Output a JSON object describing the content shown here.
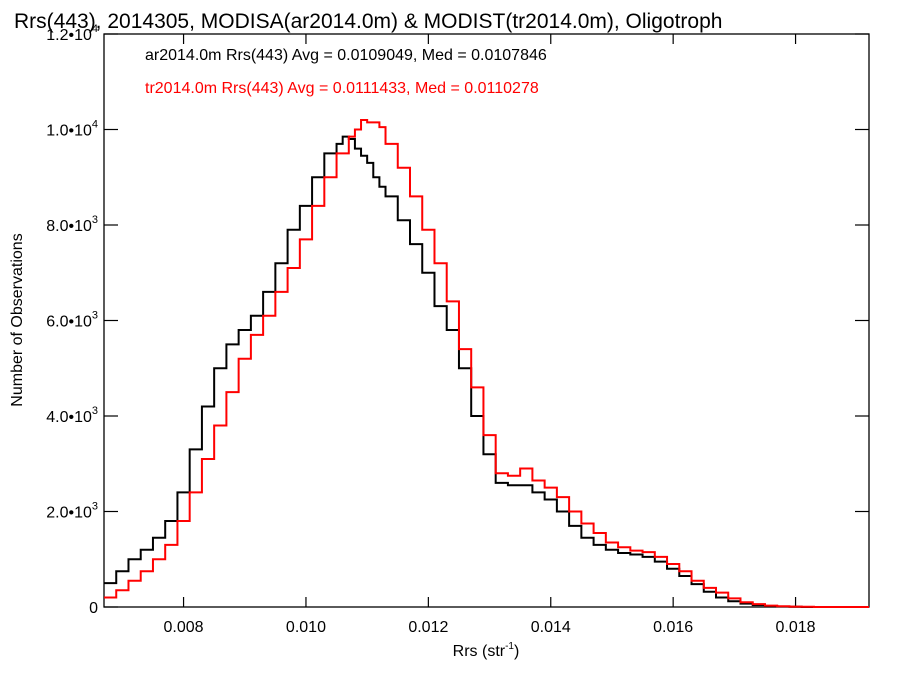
{
  "chart_data": {
    "type": "line",
    "title": "Rrs(443), 2014305, MODISA(ar2014.0m) & MODIST(tr2014.0m), Oligotroph",
    "xlabel": "Rrs (str",
    "xlabel_sup": "-1",
    "xlabel_close": ")",
    "ylabel": "Number of Observations",
    "xlim": [
      0.0067,
      0.0192
    ],
    "ylim": [
      0,
      12000
    ],
    "x_ticks": [
      {
        "value": 0.008,
        "label": "0.008"
      },
      {
        "value": 0.01,
        "label": "0.010"
      },
      {
        "value": 0.012,
        "label": "0.012"
      },
      {
        "value": 0.014,
        "label": "0.014"
      },
      {
        "value": 0.016,
        "label": "0.016"
      },
      {
        "value": 0.018,
        "label": "0.018"
      }
    ],
    "y_ticks": [
      {
        "value": 0,
        "mant": "0",
        "exp": ""
      },
      {
        "value": 2000,
        "mant": "2.0•1",
        "exp": "3"
      },
      {
        "value": 4000,
        "mant": "4.0•1",
        "exp": "3"
      },
      {
        "value": 6000,
        "mant": "6.0•1",
        "exp": "3"
      },
      {
        "value": 8000,
        "mant": "8.0•1",
        "exp": "3"
      },
      {
        "value": 10000,
        "mant": "1.0•1",
        "exp": "4"
      },
      {
        "value": 12000,
        "mant": "1.2•1",
        "exp": "4"
      }
    ],
    "legend": [
      {
        "text": "ar2014.0m Rrs(443) Avg = 0.0109049, Med = 0.0107846",
        "color": "#000000"
      },
      {
        "text": "tr2014.0m Rrs(443) Avg = 0.0111433, Med = 0.0110278",
        "color": "#ff0000"
      }
    ],
    "series": [
      {
        "color": "#000000",
        "x": [
          0.0067,
          0.0069,
          0.0071,
          0.0073,
          0.0075,
          0.0077,
          0.0079,
          0.0081,
          0.0083,
          0.0085,
          0.0087,
          0.0089,
          0.0091,
          0.0093,
          0.0095,
          0.0097,
          0.0099,
          0.0101,
          0.0103,
          0.0105,
          0.0106,
          0.0107,
          0.0108,
          0.0109,
          0.011,
          0.0111,
          0.0112,
          0.0113,
          0.0115,
          0.0117,
          0.0119,
          0.0121,
          0.0123,
          0.0125,
          0.0127,
          0.0129,
          0.0131,
          0.0133,
          0.0135,
          0.0137,
          0.0139,
          0.0141,
          0.0143,
          0.0145,
          0.0147,
          0.0149,
          0.0151,
          0.0153,
          0.0155,
          0.0157,
          0.0159,
          0.0161,
          0.0163,
          0.0165,
          0.0167,
          0.0169,
          0.0171,
          0.0173,
          0.0175,
          0.0177,
          0.0179,
          0.0181,
          0.0183,
          0.0185,
          0.0187,
          0.0189,
          0.0192
        ],
        "y": [
          500,
          750,
          1000,
          1200,
          1450,
          1800,
          2400,
          3300,
          4200,
          5000,
          5500,
          5800,
          6100,
          6600,
          7200,
          7900,
          8400,
          9000,
          9500,
          9700,
          9850,
          9800,
          9600,
          9450,
          9300,
          9000,
          8800,
          8600,
          8100,
          7600,
          7000,
          6300,
          5800,
          5000,
          4000,
          3200,
          2600,
          2550,
          2550,
          2400,
          2250,
          2000,
          1700,
          1450,
          1300,
          1200,
          1130,
          1100,
          1050,
          950,
          800,
          650,
          480,
          320,
          200,
          120,
          70,
          40,
          20,
          10,
          5,
          0,
          0,
          0,
          0,
          0,
          0
        ]
      },
      {
        "color": "#ff0000",
        "x": [
          0.0067,
          0.0069,
          0.0071,
          0.0073,
          0.0075,
          0.0077,
          0.0079,
          0.0081,
          0.0083,
          0.0085,
          0.0087,
          0.0089,
          0.0091,
          0.0093,
          0.0095,
          0.0097,
          0.0099,
          0.0101,
          0.0103,
          0.0105,
          0.0107,
          0.0108,
          0.0109,
          0.011,
          0.0111,
          0.0112,
          0.0113,
          0.0115,
          0.0117,
          0.0119,
          0.0121,
          0.0123,
          0.0125,
          0.0127,
          0.0129,
          0.0131,
          0.0133,
          0.0135,
          0.0137,
          0.0139,
          0.0141,
          0.0143,
          0.0145,
          0.0147,
          0.0149,
          0.0151,
          0.0153,
          0.0155,
          0.0157,
          0.0159,
          0.0161,
          0.0163,
          0.0165,
          0.0167,
          0.0169,
          0.0171,
          0.0173,
          0.0175,
          0.0177,
          0.0179,
          0.0181,
          0.0183,
          0.0185,
          0.0187,
          0.0189,
          0.0192
        ],
        "y": [
          200,
          350,
          550,
          750,
          1000,
          1300,
          1800,
          2400,
          3100,
          3800,
          4500,
          5200,
          5700,
          6100,
          6600,
          7100,
          7700,
          8400,
          9000,
          9500,
          9850,
          10000,
          10200,
          10150,
          10150,
          10050,
          9700,
          9200,
          8600,
          7900,
          7200,
          6400,
          5400,
          4600,
          3600,
          2800,
          2750,
          2900,
          2650,
          2500,
          2300,
          2000,
          1750,
          1550,
          1350,
          1250,
          1180,
          1150,
          1050,
          900,
          750,
          550,
          400,
          300,
          180,
          100,
          60,
          30,
          15,
          8,
          5,
          0,
          0,
          0,
          0,
          0
        ]
      }
    ]
  }
}
